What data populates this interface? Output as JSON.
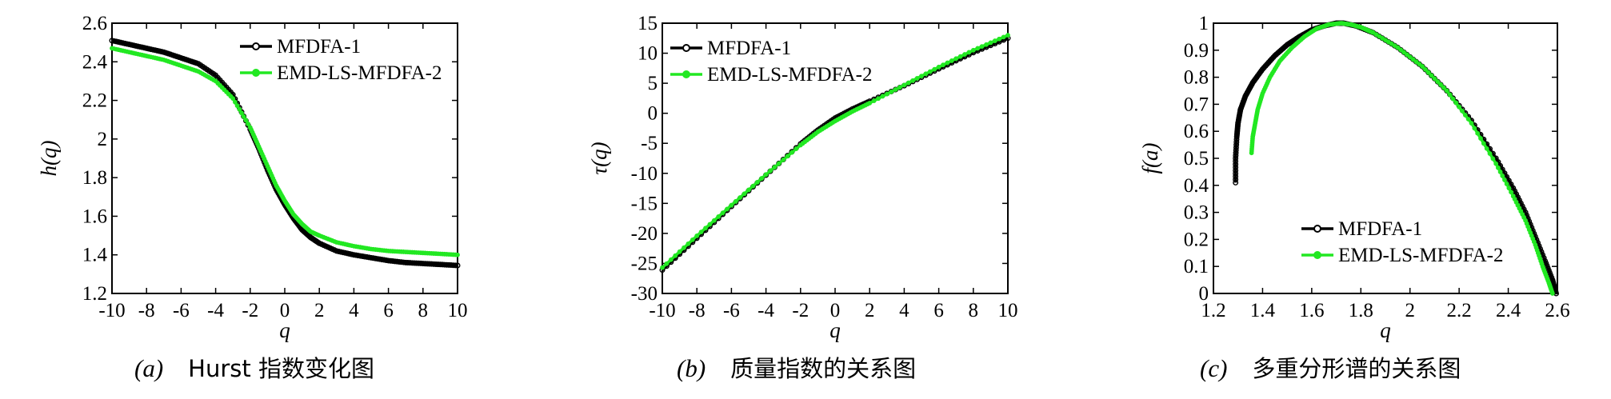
{
  "colors": {
    "series1": "#000000",
    "series2": "#22e822",
    "axis": "#000000"
  },
  "panels": [
    {
      "caption_label": "(a)",
      "caption_text": "Hurst 指数变化图"
    },
    {
      "caption_label": "(b)",
      "caption_text": "质量指数的关系图"
    },
    {
      "caption_label": "(c)",
      "caption_text": "多重分形谱的关系图"
    }
  ],
  "chart_data": [
    {
      "type": "line",
      "xlabel": "q",
      "ylabel": "h(q)",
      "xlim": [
        -10,
        10
      ],
      "ylim": [
        1.2,
        2.6
      ],
      "xticks": [
        -10,
        -8,
        -6,
        -4,
        -2,
        0,
        2,
        4,
        6,
        8,
        10
      ],
      "yticks": [
        1.2,
        1.4,
        1.6,
        1.8,
        2,
        2.2,
        2.4,
        2.6
      ],
      "legend_position": "top-right",
      "series": [
        {
          "name": "MFDFA-1",
          "x": [
            -10,
            -9,
            -8,
            -7,
            -6,
            -5,
            -4,
            -3,
            -2,
            -1.5,
            -1,
            -0.5,
            0,
            0.5,
            1,
            1.5,
            2,
            3,
            4,
            5,
            6,
            7,
            8,
            9,
            10
          ],
          "y": [
            2.51,
            2.49,
            2.47,
            2.45,
            2.42,
            2.39,
            2.33,
            2.23,
            2.05,
            1.95,
            1.84,
            1.74,
            1.66,
            1.59,
            1.53,
            1.49,
            1.46,
            1.42,
            1.4,
            1.385,
            1.37,
            1.36,
            1.355,
            1.35,
            1.345
          ]
        },
        {
          "name": "EMD-LS-MFDFA-2",
          "x": [
            -10,
            -9,
            -8,
            -7,
            -6,
            -5,
            -4,
            -3,
            -2,
            -1.5,
            -1,
            -0.5,
            0,
            0.5,
            1,
            1.5,
            2,
            3,
            4,
            5,
            6,
            7,
            8,
            9,
            10
          ],
          "y": [
            2.47,
            2.45,
            2.43,
            2.41,
            2.38,
            2.35,
            2.3,
            2.21,
            2.06,
            1.96,
            1.86,
            1.76,
            1.68,
            1.61,
            1.56,
            1.52,
            1.5,
            1.465,
            1.445,
            1.43,
            1.42,
            1.415,
            1.41,
            1.405,
            1.4
          ]
        }
      ]
    },
    {
      "type": "line",
      "xlabel": "q",
      "ylabel": "τ(q)",
      "xlim": [
        -10,
        10
      ],
      "ylim": [
        -30,
        15
      ],
      "xticks": [
        -10,
        -8,
        -6,
        -4,
        -2,
        0,
        2,
        4,
        6,
        8,
        10
      ],
      "yticks": [
        -30,
        -25,
        -20,
        -15,
        -10,
        -5,
        0,
        5,
        10,
        15
      ],
      "legend_position": "top-left",
      "series": [
        {
          "name": "MFDFA-1",
          "x": [
            -10,
            -8,
            -6,
            -4,
            -2,
            -1,
            0,
            1,
            2,
            4,
            6,
            8,
            10
          ],
          "y": [
            -26.1,
            -20.8,
            -15.5,
            -10.3,
            -5.1,
            -2.8,
            -0.8,
            0.7,
            2.0,
            4.6,
            7.4,
            10.1,
            12.5
          ]
        },
        {
          "name": "EMD-LS-MFDFA-2",
          "x": [
            -10,
            -8,
            -6,
            -4,
            -2,
            -1,
            0,
            1,
            2,
            4,
            6,
            8,
            10
          ],
          "y": [
            -25.7,
            -20.4,
            -15.3,
            -10.2,
            -5.3,
            -3.1,
            -1.3,
            0.3,
            1.7,
            4.7,
            7.7,
            10.5,
            13.0
          ]
        }
      ]
    },
    {
      "type": "line",
      "xlabel": "q",
      "ylabel": "f(a)",
      "xlim": [
        1.2,
        2.6
      ],
      "ylim": [
        0,
        1
      ],
      "xticks": [
        1.2,
        1.4,
        1.6,
        1.8,
        2,
        2.2,
        2.4,
        2.6
      ],
      "yticks": [
        0,
        0.1,
        0.2,
        0.3,
        0.4,
        0.5,
        0.6,
        0.7,
        0.8,
        0.9,
        1
      ],
      "legend_position": "bottom-right",
      "series": [
        {
          "name": "MFDFA-1",
          "x": [
            1.29,
            1.29,
            1.295,
            1.3,
            1.31,
            1.33,
            1.36,
            1.4,
            1.45,
            1.5,
            1.55,
            1.6,
            1.65,
            1.7,
            1.73,
            1.78,
            1.85,
            1.95,
            2.05,
            2.15,
            2.25,
            2.35,
            2.42,
            2.47,
            2.51,
            2.55,
            2.58,
            2.595
          ],
          "y": [
            0.41,
            0.5,
            0.58,
            0.63,
            0.68,
            0.73,
            0.78,
            0.83,
            0.88,
            0.92,
            0.95,
            0.975,
            0.99,
            1.0,
            1.0,
            0.99,
            0.965,
            0.91,
            0.84,
            0.75,
            0.64,
            0.5,
            0.39,
            0.3,
            0.21,
            0.12,
            0.05,
            0.0
          ]
        },
        {
          "name": "EMD-LS-MFDFA-2",
          "x": [
            1.355,
            1.36,
            1.37,
            1.38,
            1.4,
            1.43,
            1.47,
            1.52,
            1.57,
            1.62,
            1.67,
            1.72,
            1.76,
            1.8,
            1.85,
            1.95,
            2.05,
            2.15,
            2.25,
            2.35,
            2.42,
            2.47,
            2.51,
            2.54,
            2.565,
            2.58
          ],
          "y": [
            0.52,
            0.58,
            0.63,
            0.68,
            0.74,
            0.8,
            0.86,
            0.91,
            0.95,
            0.98,
            0.995,
            1.0,
            0.995,
            0.985,
            0.965,
            0.91,
            0.84,
            0.75,
            0.63,
            0.48,
            0.36,
            0.27,
            0.18,
            0.1,
            0.04,
            0.0
          ]
        }
      ]
    }
  ]
}
